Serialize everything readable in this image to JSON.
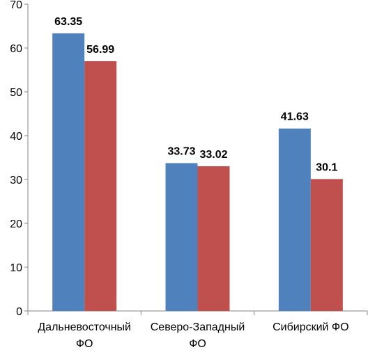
{
  "chart_data": {
    "type": "bar",
    "categories": [
      [
        "Дальневосточный",
        "ФО"
      ],
      [
        "Северо-Западный",
        "ФО"
      ],
      [
        "Сибирский ФО"
      ]
    ],
    "series": [
      {
        "values": [
          63.35,
          33.73,
          41.63
        ],
        "labels": [
          "63.35",
          "33.73",
          "41.63"
        ],
        "color": "#4F81BD"
      },
      {
        "values": [
          56.99,
          33.02,
          30.1
        ],
        "labels": [
          "56.99",
          "33.02",
          "30.1"
        ],
        "color": "#C0504D"
      }
    ],
    "ylim": [
      0,
      70
    ],
    "yticks": [
      "0",
      "10",
      "20",
      "30",
      "40",
      "50",
      "60",
      "70"
    ],
    "grid": false,
    "legend": "none",
    "title": "",
    "xlabel": "",
    "ylabel": ""
  }
}
